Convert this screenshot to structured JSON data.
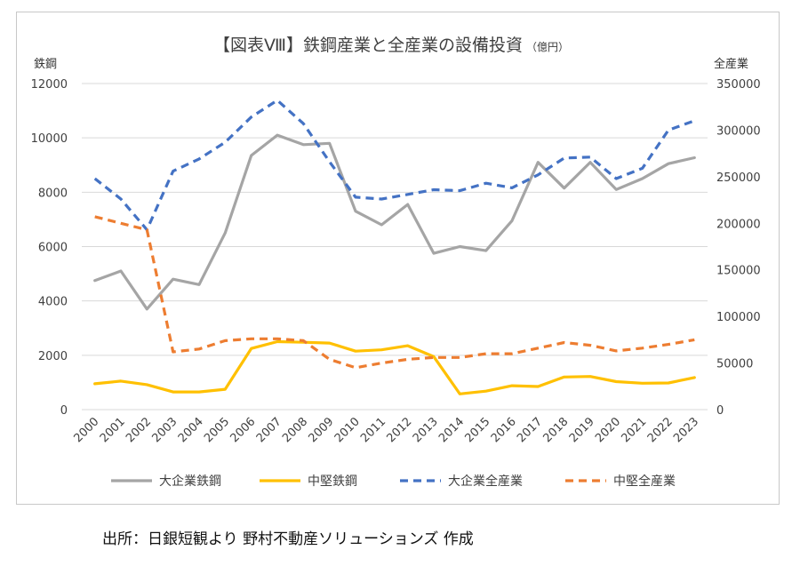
{
  "source_note": "出所：日銀短観より 野村不動産ソリューションズ 作成",
  "chart_data": {
    "type": "line",
    "title": "【図表Ⅷ】鉄鋼産業と全産業の設備投資",
    "title_unit": "（億円）",
    "ylabel_left": "鉄鋼",
    "ylabel_right": "全産業",
    "ylim_left": [
      0,
      12000
    ],
    "ylim_right": [
      0,
      350000
    ],
    "yticks_left": [
      "0",
      "2000",
      "4000",
      "6000",
      "8000",
      "10000",
      "12000"
    ],
    "yticks_right": [
      "0",
      "50000",
      "100000",
      "150000",
      "200000",
      "250000",
      "300000",
      "350000"
    ],
    "grid": true,
    "legend_position": "bottom",
    "categories": [
      "2000",
      "2001",
      "2002",
      "2003",
      "2004",
      "2005",
      "2006",
      "2007",
      "2008",
      "2009",
      "2010",
      "2011",
      "2012",
      "2013",
      "2014",
      "2015",
      "2016",
      "2017",
      "2018",
      "2019",
      "2020",
      "2021",
      "2022",
      "2023"
    ],
    "series": [
      {
        "name": "大企業鉄鋼",
        "axis": "left",
        "color": "#a5a5a5",
        "dash": false,
        "values": [
          4750,
          5100,
          3700,
          4800,
          4600,
          6500,
          9350,
          10100,
          9750,
          9800,
          7300,
          6800,
          7550,
          5750,
          6000,
          5850,
          6950,
          9100,
          8150,
          9100,
          8100,
          8500,
          9050,
          9270
        ]
      },
      {
        "name": "中堅鉄鋼",
        "axis": "left",
        "color": "#ffc000",
        "dash": false,
        "values": [
          950,
          1050,
          920,
          650,
          650,
          750,
          2250,
          2500,
          2480,
          2450,
          2150,
          2200,
          2350,
          1950,
          580,
          680,
          880,
          850,
          1200,
          1220,
          1030,
          970,
          980,
          1180
        ]
      },
      {
        "name": "大企業全産業",
        "axis": "right",
        "color": "#4472c4",
        "dash": true,
        "values": [
          248000,
          226000,
          193000,
          256000,
          269000,
          287000,
          314000,
          332000,
          307000,
          266000,
          228000,
          226000,
          231000,
          236000,
          235000,
          243000,
          238000,
          252000,
          270000,
          271000,
          248000,
          259000,
          300000,
          310000
        ]
      },
      {
        "name": "中堅全産業",
        "axis": "right",
        "color": "#ed7d31",
        "dash": true,
        "values": [
          207000,
          200000,
          193000,
          62000,
          65000,
          74000,
          76000,
          76000,
          74000,
          54000,
          45000,
          50000,
          54000,
          56000,
          56000,
          60000,
          60000,
          66000,
          72000,
          69000,
          63000,
          66000,
          70000,
          75000
        ]
      }
    ]
  }
}
